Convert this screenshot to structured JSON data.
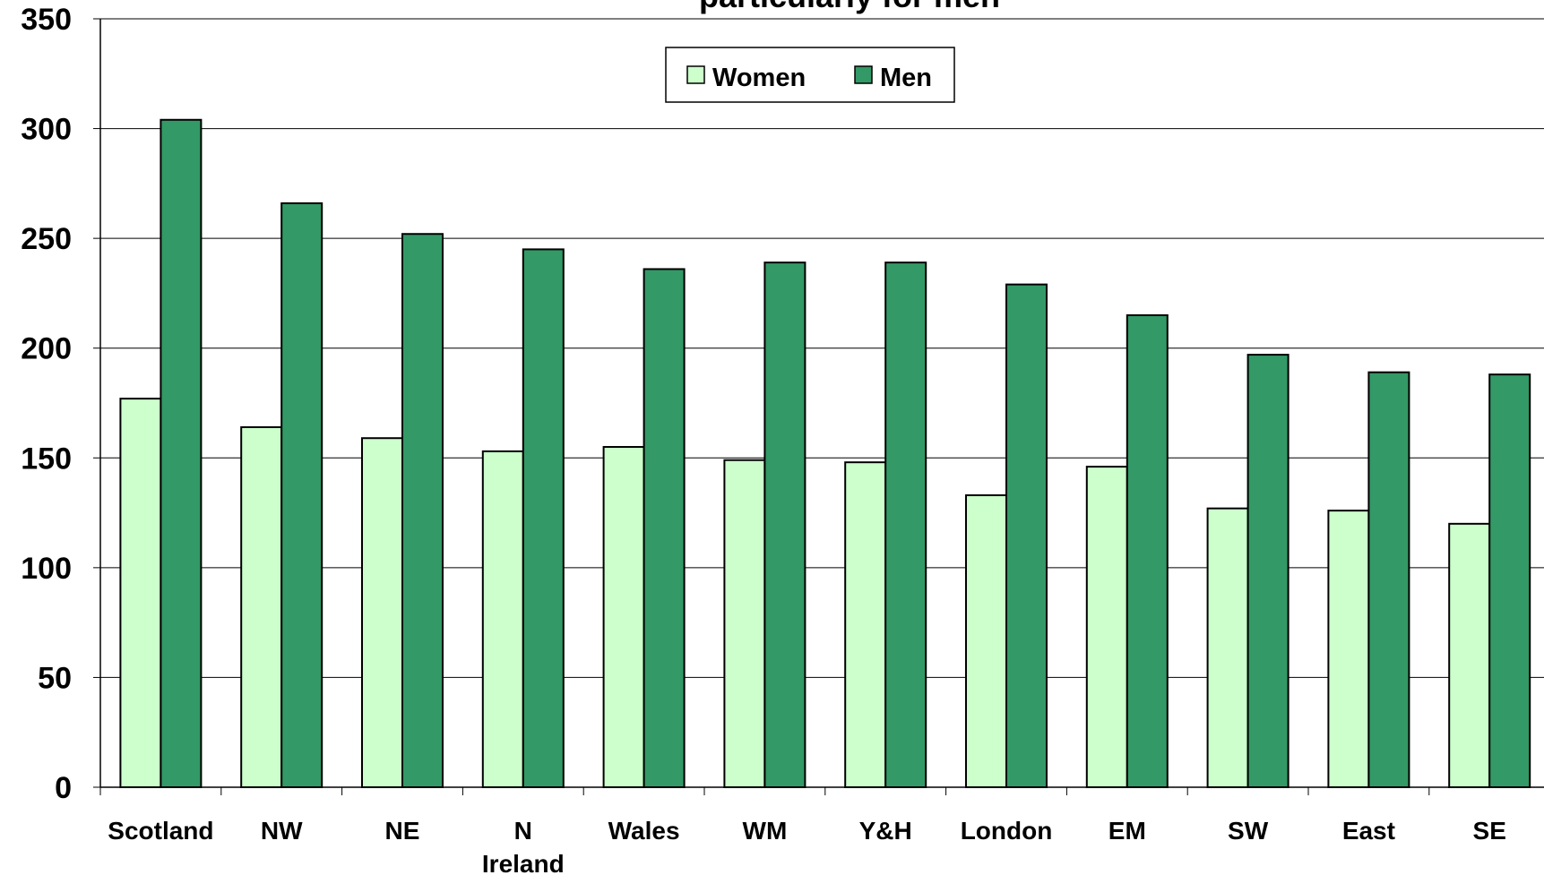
{
  "chart_data": {
    "type": "bar",
    "title": "particularly for men",
    "categories": [
      "Scotland",
      "NW",
      "NE",
      "N Ireland",
      "Wales",
      "WM",
      "Y&H",
      "London",
      "EM",
      "SW",
      "East",
      "SE"
    ],
    "category_label_lines": [
      [
        "Scotland"
      ],
      [
        "NW"
      ],
      [
        "NE"
      ],
      [
        "N",
        "Ireland"
      ],
      [
        "Wales"
      ],
      [
        "WM"
      ],
      [
        "Y&H"
      ],
      [
        "London"
      ],
      [
        "EM"
      ],
      [
        "SW"
      ],
      [
        "East"
      ],
      [
        "SE"
      ]
    ],
    "series": [
      {
        "name": "Women",
        "color": "#ccffcc",
        "values": [
          177,
          164,
          159,
          153,
          155,
          149,
          148,
          133,
          146,
          127,
          126,
          120
        ]
      },
      {
        "name": "Men",
        "color": "#339966",
        "values": [
          304,
          266,
          252,
          245,
          236,
          239,
          239,
          229,
          215,
          197,
          189,
          188
        ]
      }
    ],
    "yticks": [
      0,
      50,
      100,
      150,
      200,
      250,
      300,
      350
    ],
    "ylim": [
      0,
      350
    ],
    "grid": true,
    "legend_position": "top-center"
  }
}
